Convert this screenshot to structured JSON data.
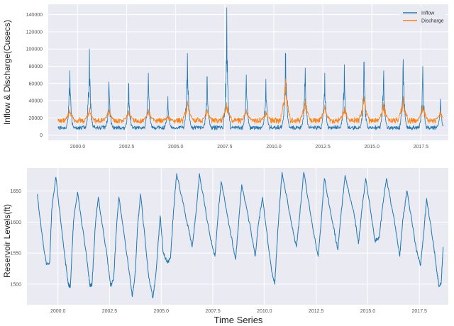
{
  "chart_data": [
    {
      "type": "line",
      "ylabel": "Inflow & Discharge(Cusecs)",
      "xlabel": "",
      "xlim": [
        1998.5,
        2018.9
      ],
      "ylim": [
        -6000,
        152000
      ],
      "x_ticks": [
        "2000.0",
        "2002.5",
        "2005.0",
        "2007.5",
        "2010.0",
        "2012.5",
        "2015.0",
        "2017.5"
      ],
      "y_ticks": [
        "0",
        "20000",
        "40000",
        "60000",
        "80000",
        "100000",
        "120000",
        "140000"
      ],
      "grid": true,
      "legend_position": "top-right",
      "series": [
        {
          "name": "Inflow",
          "color": "#1f77b4",
          "peaks": [
            {
              "x": 1999.6,
              "y": 75000
            },
            {
              "x": 2000.6,
              "y": 100000
            },
            {
              "x": 2001.6,
              "y": 62000
            },
            {
              "x": 2002.6,
              "y": 60000
            },
            {
              "x": 2003.6,
              "y": 72000
            },
            {
              "x": 2004.6,
              "y": 45000
            },
            {
              "x": 2005.6,
              "y": 95000
            },
            {
              "x": 2006.6,
              "y": 68000
            },
            {
              "x": 2007.6,
              "y": 148000
            },
            {
              "x": 2008.6,
              "y": 70000
            },
            {
              "x": 2009.6,
              "y": 65000
            },
            {
              "x": 2010.6,
              "y": 95000
            },
            {
              "x": 2011.6,
              "y": 78000
            },
            {
              "x": 2012.6,
              "y": 72000
            },
            {
              "x": 2013.6,
              "y": 82000
            },
            {
              "x": 2014.6,
              "y": 85000
            },
            {
              "x": 2015.6,
              "y": 75000
            },
            {
              "x": 2016.6,
              "y": 88000
            },
            {
              "x": 2017.6,
              "y": 80000
            },
            {
              "x": 2018.5,
              "y": 42000
            }
          ]
        },
        {
          "name": "Discharge",
          "color": "#ff7f0e",
          "peaks": [
            {
              "x": 1999.6,
              "y": 30000
            },
            {
              "x": 2000.6,
              "y": 32000
            },
            {
              "x": 2001.6,
              "y": 30000
            },
            {
              "x": 2002.6,
              "y": 28000
            },
            {
              "x": 2003.6,
              "y": 30000
            },
            {
              "x": 2004.6,
              "y": 22000
            },
            {
              "x": 2005.6,
              "y": 40000
            },
            {
              "x": 2006.6,
              "y": 30000
            },
            {
              "x": 2007.6,
              "y": 38000
            },
            {
              "x": 2008.6,
              "y": 30000
            },
            {
              "x": 2009.6,
              "y": 28000
            },
            {
              "x": 2010.6,
              "y": 65000
            },
            {
              "x": 2011.6,
              "y": 42000
            },
            {
              "x": 2012.6,
              "y": 35000
            },
            {
              "x": 2013.6,
              "y": 33000
            },
            {
              "x": 2014.6,
              "y": 45000
            },
            {
              "x": 2015.6,
              "y": 38000
            },
            {
              "x": 2016.6,
              "y": 45000
            },
            {
              "x": 2017.6,
              "y": 35000
            },
            {
              "x": 2018.5,
              "y": 28000
            }
          ]
        }
      ]
    },
    {
      "type": "line",
      "ylabel": "Reservoir Levels(ft)",
      "xlabel": "Time Series",
      "xlim": [
        1998.5,
        2018.9
      ],
      "ylim": [
        1467,
        1687
      ],
      "x_ticks": [
        "2000.0",
        "2002.5",
        "2005.0",
        "2007.5",
        "2010.0",
        "2012.5",
        "2015.0",
        "2017.5"
      ],
      "y_ticks": [
        "1500",
        "1550",
        "1600",
        "1650"
      ],
      "grid": true,
      "series": [
        {
          "color": "#1f77b4",
          "points": [
            [
              1999.0,
              1645
            ],
            [
              1999.3,
              1560
            ],
            [
              1999.45,
              1532
            ],
            [
              1999.6,
              1535
            ],
            [
              1999.7,
              1620
            ],
            [
              1999.9,
              1672
            ],
            [
              2000.35,
              1540
            ],
            [
              2000.5,
              1500
            ],
            [
              2000.6,
              1495
            ],
            [
              2000.75,
              1600
            ],
            [
              2000.95,
              1648
            ],
            [
              2001.4,
              1540
            ],
            [
              2001.55,
              1497
            ],
            [
              2001.65,
              1500
            ],
            [
              2001.8,
              1590
            ],
            [
              2001.95,
              1640
            ],
            [
              2002.4,
              1540
            ],
            [
              2002.55,
              1497
            ],
            [
              2002.7,
              1510
            ],
            [
              2002.85,
              1600
            ],
            [
              2002.95,
              1640
            ],
            [
              2003.45,
              1520
            ],
            [
              2003.6,
              1480
            ],
            [
              2003.75,
              1520
            ],
            [
              2003.85,
              1590
            ],
            [
              2004.0,
              1645
            ],
            [
              2004.4,
              1510
            ],
            [
              2004.6,
              1478
            ],
            [
              2004.75,
              1520
            ],
            [
              2004.95,
              1610
            ],
            [
              2005.1,
              1550
            ],
            [
              2005.3,
              1535
            ],
            [
              2005.45,
              1542
            ],
            [
              2005.6,
              1620
            ],
            [
              2005.75,
              1678
            ],
            [
              2006.25,
              1600
            ],
            [
              2006.5,
              1560
            ],
            [
              2006.7,
              1620
            ],
            [
              2006.85,
              1678
            ],
            [
              2007.35,
              1580
            ],
            [
              2007.6,
              1545
            ],
            [
              2007.75,
              1610
            ],
            [
              2007.9,
              1665
            ],
            [
              2008.4,
              1575
            ],
            [
              2008.6,
              1540
            ],
            [
              2008.75,
              1600
            ],
            [
              2008.9,
              1660
            ],
            [
              2009.35,
              1585
            ],
            [
              2009.55,
              1545
            ],
            [
              2009.7,
              1595
            ],
            [
              2009.9,
              1640
            ],
            [
              2010.35,
              1520
            ],
            [
              2010.5,
              1500
            ],
            [
              2010.65,
              1590
            ],
            [
              2010.85,
              1680
            ],
            [
              2011.35,
              1590
            ],
            [
              2011.55,
              1560
            ],
            [
              2011.7,
              1610
            ],
            [
              2011.9,
              1680
            ],
            [
              2012.4,
              1580
            ],
            [
              2012.6,
              1545
            ],
            [
              2012.75,
              1605
            ],
            [
              2012.9,
              1670
            ],
            [
              2013.35,
              1590
            ],
            [
              2013.55,
              1555
            ],
            [
              2013.7,
              1610
            ],
            [
              2013.9,
              1675
            ],
            [
              2014.35,
              1610
            ],
            [
              2014.55,
              1565
            ],
            [
              2014.7,
              1615
            ],
            [
              2014.9,
              1670
            ],
            [
              2015.35,
              1570
            ],
            [
              2015.55,
              1575
            ],
            [
              2015.7,
              1620
            ],
            [
              2015.9,
              1670
            ],
            [
              2016.35,
              1590
            ],
            [
              2016.55,
              1545
            ],
            [
              2016.7,
              1605
            ],
            [
              2016.9,
              1650
            ],
            [
              2017.35,
              1555
            ],
            [
              2017.55,
              1530
            ],
            [
              2017.7,
              1580
            ],
            [
              2017.85,
              1638
            ],
            [
              2018.2,
              1560
            ],
            [
              2018.35,
              1520
            ],
            [
              2018.45,
              1497
            ],
            [
              2018.55,
              1500
            ],
            [
              2018.65,
              1560
            ]
          ]
        }
      ]
    }
  ]
}
